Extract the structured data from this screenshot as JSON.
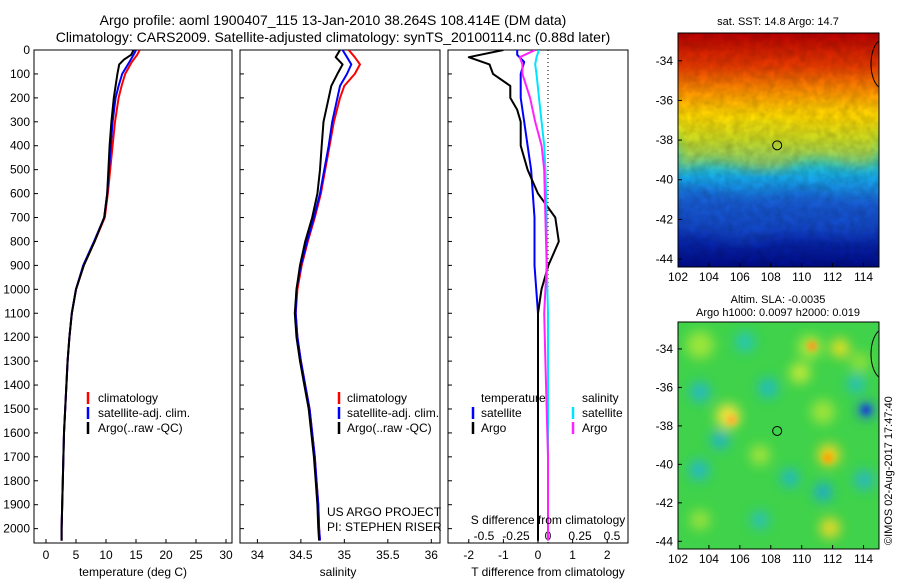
{
  "header": {
    "line1": "Argo profile: aoml 1900407_115 13-Jan-2010 38.264S 108.414E (DM data)",
    "line2": "Climatology: CARS2009. Satellite-adjusted climatology: synTS_20100114.nc (0.88d later)"
  },
  "colors": {
    "climatology": "#ff0000",
    "satellite": "#0000ff",
    "argo": "#000000",
    "salinity_satellite": "#00e5ff",
    "salinity_argo": "#ff22ff"
  },
  "credits": {
    "project": "US ARGO PROJECT",
    "pi": "PI: STEPHEN RISER",
    "stamp": "©IMOS 02-Aug-2017 17:47:40"
  },
  "chart_data": [
    {
      "type": "line",
      "xlabel": "temperature (deg C)",
      "xlim": [
        -2,
        31
      ],
      "ylim": [
        0,
        2060
      ],
      "xticks": [
        "0",
        "5",
        "10",
        "15",
        "20",
        "25",
        "30"
      ],
      "yticks": [
        "0",
        "100",
        "200",
        "300",
        "400",
        "500",
        "600",
        "700",
        "800",
        "900",
        "1000",
        "1100",
        "1200",
        "1300",
        "1400",
        "1500",
        "1600",
        "1700",
        "1800",
        "1900",
        "2000"
      ],
      "legend": [
        "climatology",
        "satellite-adj. clim.",
        "Argo(..raw -QC)"
      ],
      "series": [
        {
          "name": "climatology",
          "depth": [
            0,
            20,
            50,
            100,
            150,
            200,
            300,
            400,
            500,
            600,
            700,
            800,
            900,
            1000,
            1100,
            1200,
            1300,
            1400,
            1500,
            1600,
            1700,
            1800,
            1900,
            2000,
            2050
          ],
          "values": [
            15.6,
            15.2,
            14.3,
            13.2,
            12.6,
            12.1,
            11.5,
            11.1,
            10.7,
            10.3,
            9.8,
            8.1,
            6.3,
            5.0,
            4.3,
            3.9,
            3.6,
            3.4,
            3.2,
            3.0,
            2.9,
            2.8,
            2.7,
            2.6,
            2.6
          ]
        },
        {
          "name": "satellite-adj. clim.",
          "depth": [
            0,
            20,
            50,
            100,
            150,
            200,
            300,
            400,
            500,
            600,
            700,
            800,
            900,
            1000,
            1100,
            1200,
            1300,
            1400,
            1500,
            1600,
            1700,
            1800,
            1900,
            2000,
            2050
          ],
          "values": [
            15.0,
            14.6,
            13.9,
            12.7,
            12.1,
            11.6,
            11.1,
            10.8,
            10.5,
            10.2,
            9.7,
            8.0,
            6.2,
            5.0,
            4.3,
            3.9,
            3.6,
            3.4,
            3.2,
            3.0,
            2.9,
            2.8,
            2.7,
            2.6,
            2.6
          ]
        },
        {
          "name": "Argo(..raw -QC)",
          "depth": [
            0,
            20,
            40,
            60,
            100,
            150,
            200,
            300,
            400,
            500,
            600,
            700,
            800,
            900,
            1000,
            1100,
            1200,
            1300,
            1400,
            1500,
            1600,
            1700,
            1800,
            1900,
            2000,
            2050
          ],
          "values": [
            14.6,
            14.2,
            13.0,
            12.2,
            11.9,
            11.6,
            11.3,
            10.9,
            10.6,
            10.4,
            10.2,
            9.7,
            8.1,
            6.3,
            5.0,
            4.3,
            3.9,
            3.6,
            3.4,
            3.2,
            3.0,
            2.9,
            2.8,
            2.7,
            2.6,
            2.6
          ]
        }
      ]
    },
    {
      "type": "line",
      "xlabel": "salinity",
      "xlim": [
        33.8,
        36.1
      ],
      "ylim": [
        0,
        2060
      ],
      "xticks": [
        "34",
        "34.5",
        "35",
        "35.5",
        "36"
      ],
      "legend": [
        "climatology",
        "satellite-adj. clim.",
        "Argo(..raw -QC)"
      ],
      "series": [
        {
          "name": "climatology",
          "depth": [
            0,
            30,
            60,
            100,
            150,
            200,
            300,
            400,
            500,
            600,
            700,
            800,
            900,
            1000,
            1100,
            1200,
            1300,
            1400,
            1500,
            1600,
            1700,
            1800,
            1900,
            2000,
            2050
          ],
          "values": [
            35.05,
            35.12,
            35.18,
            35.12,
            35.0,
            34.95,
            34.88,
            34.83,
            34.78,
            34.73,
            34.66,
            34.58,
            34.51,
            34.46,
            34.44,
            34.46,
            34.5,
            34.55,
            34.6,
            34.63,
            34.66,
            34.68,
            34.7,
            34.71,
            34.72
          ]
        },
        {
          "name": "satellite-adj. clim.",
          "depth": [
            0,
            30,
            60,
            100,
            150,
            200,
            300,
            400,
            500,
            600,
            700,
            800,
            900,
            1000,
            1100,
            1200,
            1300,
            1400,
            1500,
            1600,
            1700,
            1800,
            1900,
            2000,
            2050
          ],
          "values": [
            34.98,
            35.03,
            35.08,
            35.03,
            34.95,
            34.92,
            34.86,
            34.82,
            34.77,
            34.72,
            34.65,
            34.57,
            34.5,
            34.45,
            34.44,
            34.46,
            34.5,
            34.55,
            34.6,
            34.63,
            34.66,
            34.68,
            34.7,
            34.71,
            34.72
          ]
        },
        {
          "name": "Argo(..raw -QC)",
          "depth": [
            0,
            30,
            60,
            100,
            150,
            200,
            300,
            400,
            500,
            600,
            700,
            800,
            900,
            1000,
            1100,
            1200,
            1300,
            1400,
            1500,
            1600,
            1700,
            1800,
            1900,
            2000,
            2050
          ],
          "values": [
            34.95,
            34.9,
            34.98,
            34.92,
            34.85,
            34.82,
            34.76,
            34.74,
            34.72,
            34.69,
            34.63,
            34.55,
            34.49,
            34.45,
            34.43,
            34.45,
            34.49,
            34.54,
            34.59,
            34.62,
            34.65,
            34.67,
            34.69,
            34.7,
            34.71
          ]
        }
      ]
    },
    {
      "type": "line",
      "xlabel": "T difference from climatology",
      "xlabel_top": "S difference from climatology",
      "xlim": [
        -2.6,
        2.6
      ],
      "ylim": [
        0,
        2060
      ],
      "xticks": [
        "-2",
        "-1",
        "0",
        "1",
        "2"
      ],
      "xticks_top": [
        "-0.5",
        "-0.25",
        "0",
        "0.25",
        "0.5"
      ],
      "legend_temperature": {
        "title": "temperature",
        "items": [
          "satellite",
          "Argo"
        ]
      },
      "legend_salinity": {
        "title": "salinity",
        "items": [
          "satellite",
          "Argo"
        ]
      },
      "series": [
        {
          "name": "temperature satellite",
          "depth": [
            0,
            20,
            50,
            100,
            150,
            200,
            300,
            400,
            500,
            700,
            900,
            1100,
            1300,
            1500,
            1700,
            1900,
            2050
          ],
          "values": [
            -0.6,
            -0.6,
            -0.4,
            -0.5,
            -0.5,
            -0.5,
            -0.4,
            -0.3,
            -0.2,
            -0.1,
            -0.1,
            0.0,
            0.0,
            0.0,
            0.0,
            0.0,
            0.0
          ]
        },
        {
          "name": "temperature Argo",
          "depth": [
            0,
            30,
            60,
            100,
            150,
            200,
            250,
            300,
            400,
            500,
            600,
            700,
            800,
            900,
            1000,
            1100,
            1300,
            1500,
            1700,
            1900,
            2050
          ],
          "values": [
            -1.0,
            -2.0,
            -1.4,
            -1.3,
            -0.8,
            -0.8,
            -0.6,
            -0.5,
            -0.5,
            -0.3,
            0.0,
            0.5,
            0.6,
            0.3,
            0.1,
            0.0,
            0.0,
            0.0,
            0.0,
            0.0,
            0.0
          ]
        },
        {
          "name": "salinity satellite",
          "depth": [
            0,
            30,
            60,
            100,
            200,
            300,
            400,
            500,
            700,
            900,
            1100,
            1300,
            1500,
            1700,
            1900,
            2050
          ],
          "values": [
            -0.07,
            -0.09,
            -0.1,
            -0.09,
            -0.07,
            -0.05,
            -0.03,
            -0.02,
            -0.01,
            -0.01,
            0.0,
            0.0,
            0.0,
            0.0,
            0.0,
            0.0
          ]
        },
        {
          "name": "salinity Argo",
          "depth": [
            0,
            30,
            60,
            100,
            200,
            300,
            400,
            500,
            700,
            900,
            1000,
            1100,
            1300,
            1500,
            1700,
            1900,
            2050
          ],
          "values": [
            -0.1,
            -0.22,
            -0.2,
            -0.2,
            -0.14,
            -0.1,
            -0.05,
            -0.03,
            -0.02,
            -0.01,
            -0.02,
            -0.03,
            -0.02,
            -0.01,
            0.0,
            0.0,
            0.0
          ]
        }
      ]
    },
    {
      "type": "heatmap",
      "title": "sat. SST: 14.8 Argo: 14.7",
      "xlim": [
        102,
        115
      ],
      "ylim": [
        -44.4,
        -32.6
      ],
      "xticks": [
        "102",
        "104",
        "106",
        "108",
        "110",
        "112",
        "114"
      ],
      "yticks": [
        "-34",
        "-36",
        "-38",
        "-40",
        "-42",
        "-44"
      ],
      "profile_marker": {
        "x": 108.414,
        "y": -38.264
      }
    },
    {
      "type": "heatmap",
      "title": "Altim. SLA: -0.0035",
      "subtitle": "Argo h1000: 0.0097 h2000: 0.019",
      "xlim": [
        102,
        115
      ],
      "ylim": [
        -44.4,
        -32.6
      ],
      "xticks": [
        "102",
        "104",
        "106",
        "108",
        "110",
        "112",
        "114"
      ],
      "yticks": [
        "-34",
        "-36",
        "-38",
        "-40",
        "-42",
        "-44"
      ],
      "profile_marker": {
        "x": 108.414,
        "y": -38.264
      }
    }
  ]
}
